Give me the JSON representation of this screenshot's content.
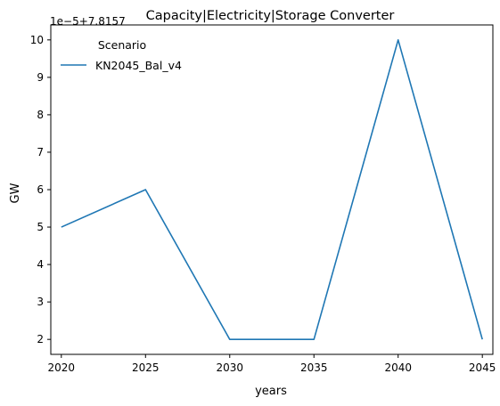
{
  "chart_data": {
    "type": "line",
    "title": "Capacity|Electricity|Storage Converter",
    "xlabel": "years",
    "ylabel": "GW",
    "y_offset_label": "1e−5+7.8157",
    "x": [
      2020,
      2025,
      2030,
      2035,
      2040,
      2045
    ],
    "xticks": [
      "2020",
      "2025",
      "2030",
      "2035",
      "2040",
      "2045"
    ],
    "yticks": [
      "2",
      "3",
      "4",
      "5",
      "6",
      "7",
      "8",
      "9",
      "10"
    ],
    "xlim": [
      2019.375,
      2045.625
    ],
    "ylim": [
      1.6,
      10.4
    ],
    "grid": false,
    "legend": {
      "title": "Scenario",
      "placement": "top-left"
    },
    "series": [
      {
        "name": "KN2045_Bal_v4",
        "color": "#1f77b4",
        "values": [
          5,
          6,
          2,
          2,
          10,
          2
        ]
      }
    ]
  }
}
